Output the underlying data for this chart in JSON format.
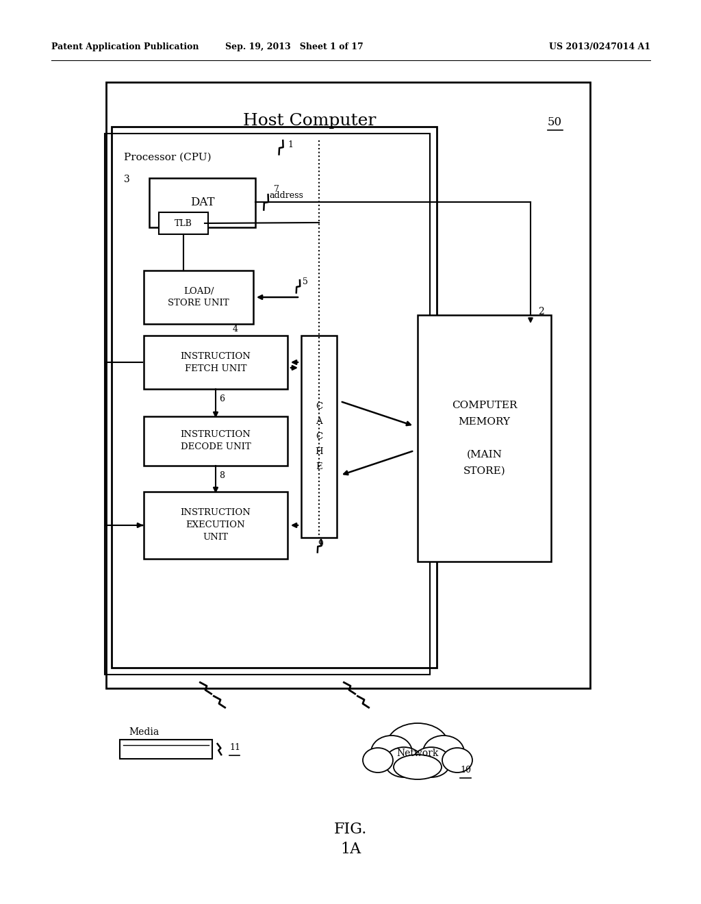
{
  "bg_color": "#ffffff",
  "header_left": "Patent Application Publication",
  "header_center": "Sep. 19, 2013   Sheet 1 of 17",
  "header_right": "US 2013/0247014 A1",
  "title_main": "Host Computer",
  "label_50": "50",
  "label_cpu": "Processor (CPU)",
  "label_3": "3",
  "label_dat": "DAT",
  "label_tlb": "TLB",
  "label_load": "LOAD/\nSTORE UNIT",
  "label_ifetch": "INSTRUCTION\nFETCH UNIT",
  "label_idecode": "INSTRUCTION\nDECODE UNIT",
  "label_iexec": "INSTRUCTION\nEXECUTION\nUNIT",
  "label_cache": "C\nA\nC\nH\nE",
  "label_memory": "COMPUTER\nMEMORY\n\n(MAIN\nSTORE)",
  "label_media": "Media",
  "label_network": "Network",
  "label_1": "1",
  "label_2": "2",
  "label_4": "4",
  "label_5": "5",
  "label_6": "6",
  "label_7": "7",
  "label_8": "8",
  "label_9": "9",
  "label_10": "10",
  "label_11": "11",
  "label_address": "address",
  "fig_label": "FIG.\n1A"
}
